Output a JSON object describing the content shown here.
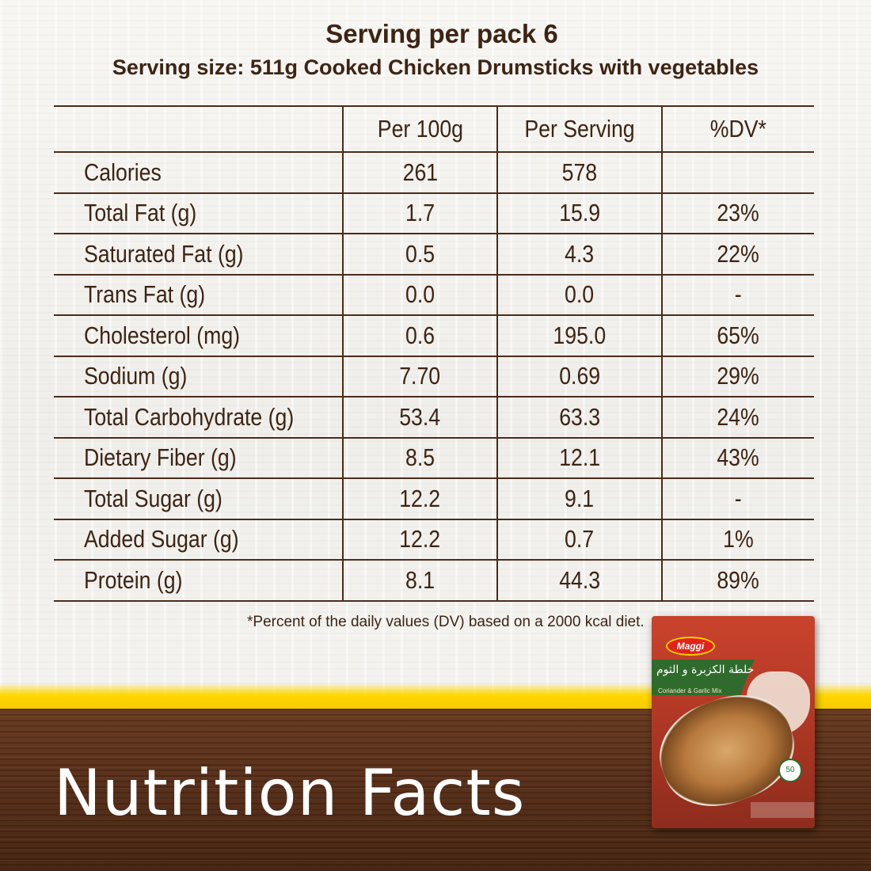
{
  "header": {
    "servings": "Serving per pack 6",
    "serving_size": "Serving size: 511g Cooked Chicken Drumsticks with vegetables"
  },
  "table": {
    "columns": [
      "",
      "Per 100g",
      "Per Serving",
      "%DV*"
    ],
    "rows": [
      {
        "label": "Calories",
        "per100": "261",
        "perServing": "578",
        "dv": ""
      },
      {
        "label": "Total Fat (g)",
        "per100": "1.7",
        "perServing": "15.9",
        "dv": "23%"
      },
      {
        "label": "Saturated Fat (g)",
        "per100": "0.5",
        "perServing": "4.3",
        "dv": "22%"
      },
      {
        "label": "Trans Fat (g)",
        "per100": "0.0",
        "perServing": "0.0",
        "dv": "-"
      },
      {
        "label": "Cholesterol (mg)",
        "per100": "0.6",
        "perServing": "195.0",
        "dv": "65%"
      },
      {
        "label": "Sodium (g)",
        "per100": "7.70",
        "perServing": "0.69",
        "dv": "29%"
      },
      {
        "label": "Total Carbohydrate (g)",
        "per100": "53.4",
        "perServing": "63.3",
        "dv": "24%"
      },
      {
        "label": "Dietary Fiber (g)",
        "per100": "8.5",
        "perServing": "12.1",
        "dv": "43%"
      },
      {
        "label": "Total Sugar (g)",
        "per100": "12.2",
        "perServing": "9.1",
        "dv": "-"
      },
      {
        "label": "Added Sugar (g)",
        "per100": "12.2",
        "perServing": "0.7",
        "dv": "1%"
      },
      {
        "label": "Protein (g)",
        "per100": "8.1",
        "perServing": "44.3",
        "dv": "89%"
      }
    ]
  },
  "footnote": "*Percent of the daily values (DV) based on a 2000 kcal diet.",
  "banner_title": "Nutrition Facts",
  "pack": {
    "brand": "Maggi",
    "name_ar": "خلطة الكزبرة و الثوم",
    "name_en": "Coriander & Garlic Mix",
    "badge": "50"
  },
  "colors": {
    "text_brown": "#3d2414",
    "accent_yellow": "#ffd600",
    "wood": "#5b321c",
    "pack_red": "#c9432c"
  }
}
